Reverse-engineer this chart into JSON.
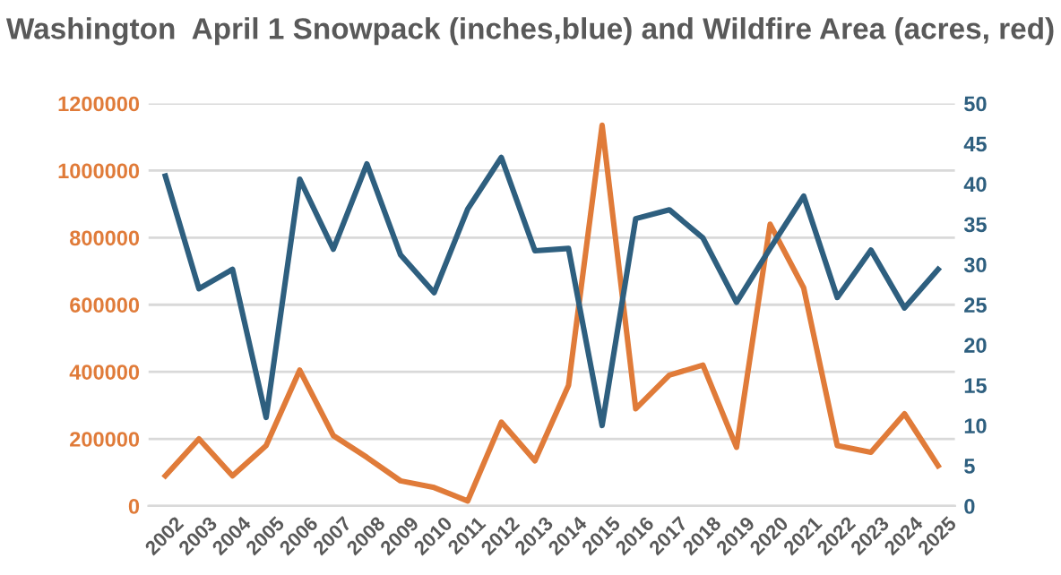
{
  "chart_data": {
    "type": "line",
    "title": "Washington  April 1 Snowpack (inches,blue) and Wildfire Area (acres, red)",
    "categories": [
      "2002",
      "2003",
      "2004",
      "2005",
      "2006",
      "2007",
      "2008",
      "2009",
      "2010",
      "2011",
      "2012",
      "2013",
      "2014",
      "2015",
      "2016",
      "2017",
      "2018",
      "2019",
      "2020",
      "2021",
      "2022",
      "2023",
      "2024",
      "2025"
    ],
    "series": [
      {
        "color": "#e07b39",
        "axis": "y",
        "values": [
          90000,
          200000,
          90000,
          180000,
          405000,
          210000,
          145000,
          75000,
          55000,
          15000,
          250000,
          135000,
          360000,
          1135000,
          290000,
          390000,
          420000,
          175000,
          840000,
          650000,
          180000,
          160000,
          275000,
          120000
        ]
      },
      {
        "color": "#2e5f7f",
        "axis": "y2",
        "values": [
          41,
          27,
          29.4,
          11,
          40.6,
          31.9,
          42.5,
          31.2,
          26.5,
          36.9,
          43.3,
          31.7,
          32,
          10,
          35.7,
          36.8,
          33.3,
          25.3,
          32,
          38.5,
          25.9,
          31.8,
          24.6,
          29.4
        ]
      }
    ],
    "ylim": [
      0,
      1200000
    ],
    "yticks": [
      0,
      200000,
      400000,
      600000,
      800000,
      1000000,
      1200000
    ],
    "y2lim": [
      0,
      50
    ],
    "y2ticks": [
      0,
      5,
      10,
      15,
      20,
      25,
      30,
      35,
      40,
      45,
      50
    ],
    "grid": "y",
    "legend": false,
    "marker": "none",
    "line_style": "solid"
  }
}
